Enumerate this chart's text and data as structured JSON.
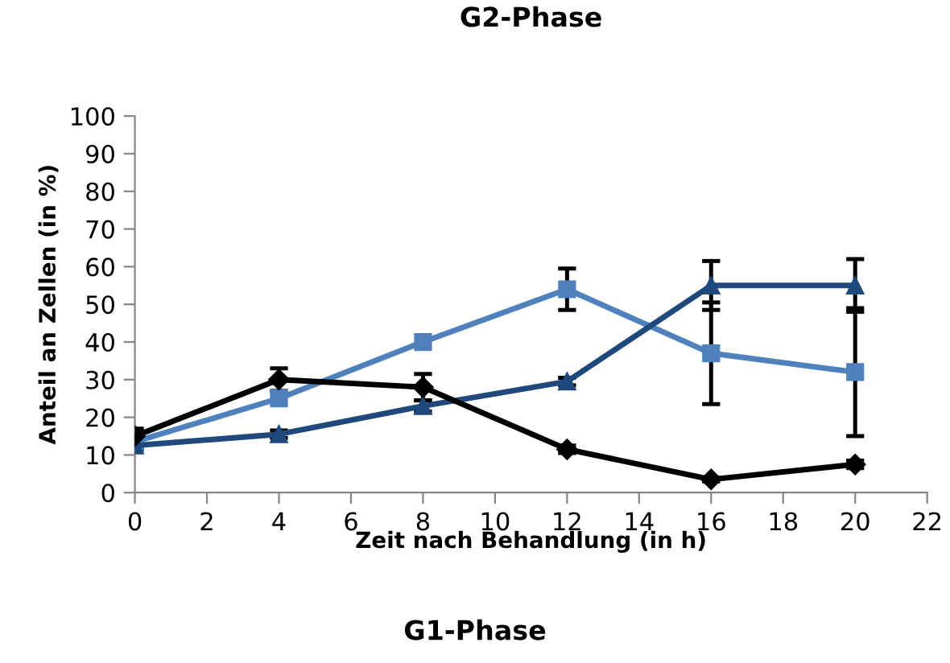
{
  "chart_data": {
    "type": "line",
    "title": "G2-Phase",
    "xlabel": "Zeit nach Behandlung (in h)",
    "ylabel": "Anteil an Zellen (in %)",
    "annotations": [
      "G1-Phase"
    ],
    "x": [
      0,
      4,
      8,
      12,
      16,
      20
    ],
    "series": [
      {
        "color": "#000000",
        "marker": "diamond",
        "values": [
          15,
          30,
          28,
          11.5,
          3.5,
          7.5
        ],
        "errors": [
          2,
          3,
          3.5,
          1,
          0.5,
          1
        ]
      },
      {
        "color": "#4f81bd",
        "marker": "square",
        "values": [
          13.5,
          25,
          40,
          54,
          37,
          32
        ],
        "errors": [
          null,
          null,
          null,
          5.5,
          13.5,
          17
        ]
      },
      {
        "color": "#1f497d",
        "marker": "triangle",
        "values": [
          12.5,
          15.5,
          23,
          29.5,
          55,
          55
        ],
        "errors": [
          1,
          1,
          1.5,
          1,
          6.5,
          7
        ]
      }
    ],
    "xlim": [
      0,
      22
    ],
    "xticks": [
      0,
      2,
      4,
      6,
      8,
      10,
      12,
      14,
      16,
      18,
      20,
      22
    ],
    "ylim": [
      0,
      100
    ],
    "yticks": [
      0,
      10,
      20,
      30,
      40,
      50,
      60,
      70,
      80,
      90,
      100
    ],
    "grid": false,
    "legend": false,
    "line_style": "solid"
  }
}
